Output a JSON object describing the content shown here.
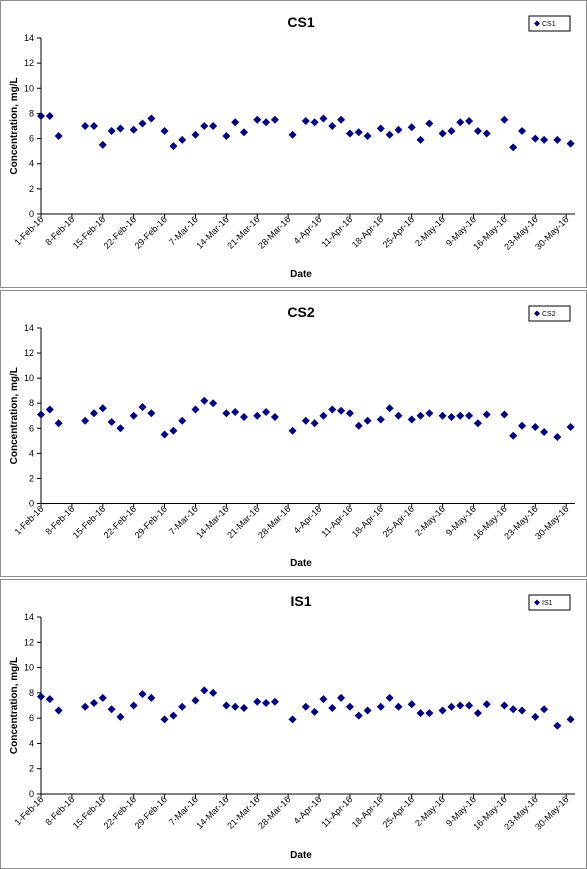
{
  "chart_data": [
    {
      "type": "scatter",
      "title": "CS1",
      "xlabel": "Date",
      "ylabel": "Concentration, mg/L",
      "ylim": [
        0,
        14
      ],
      "yticks": [
        0,
        2,
        4,
        6,
        8,
        10,
        12,
        14
      ],
      "xlim": [
        "2016-02-01",
        "2016-06-01"
      ],
      "xtick_labels": [
        "1-Feb-16",
        "8-Feb-16",
        "15-Feb-16",
        "22-Feb-16",
        "29-Feb-16",
        "7-Mar-16",
        "14-Mar-16",
        "21-Mar-16",
        "28-Mar-16",
        "4-Apr-16",
        "11-Apr-16",
        "18-Apr-16",
        "25-Apr-16",
        "2-May-16",
        "9-May-16",
        "16-May-16",
        "23-May-16",
        "30-May-16"
      ],
      "grid": false,
      "legend": "top-right",
      "marker_color": "#000080",
      "series": [
        {
          "name": "CS1",
          "x": [
            "2016-02-01",
            "2016-02-03",
            "2016-02-05",
            "2016-02-11",
            "2016-02-13",
            "2016-02-15",
            "2016-02-17",
            "2016-02-19",
            "2016-02-22",
            "2016-02-24",
            "2016-02-26",
            "2016-02-29",
            "2016-03-02",
            "2016-03-04",
            "2016-03-07",
            "2016-03-09",
            "2016-03-11",
            "2016-03-14",
            "2016-03-16",
            "2016-03-18",
            "2016-03-21",
            "2016-03-23",
            "2016-03-25",
            "2016-03-29",
            "2016-04-01",
            "2016-04-03",
            "2016-04-05",
            "2016-04-07",
            "2016-04-09",
            "2016-04-11",
            "2016-04-13",
            "2016-04-15",
            "2016-04-18",
            "2016-04-20",
            "2016-04-22",
            "2016-04-25",
            "2016-04-27",
            "2016-04-29",
            "2016-05-02",
            "2016-05-04",
            "2016-05-06",
            "2016-05-08",
            "2016-05-10",
            "2016-05-12",
            "2016-05-16",
            "2016-05-18",
            "2016-05-20",
            "2016-05-23",
            "2016-05-25",
            "2016-05-28",
            "2016-05-31"
          ],
          "y": [
            7.8,
            7.8,
            6.2,
            7.0,
            7.0,
            5.5,
            6.6,
            6.8,
            6.7,
            7.2,
            7.6,
            6.6,
            5.4,
            5.9,
            6.3,
            7.0,
            7.0,
            6.2,
            7.3,
            6.5,
            7.5,
            7.3,
            7.5,
            6.3,
            7.4,
            7.3,
            7.6,
            7.0,
            7.5,
            6.4,
            6.5,
            6.2,
            6.8,
            6.3,
            6.7,
            6.9,
            5.9,
            7.2,
            6.4,
            6.6,
            7.3,
            7.4,
            6.6,
            6.4,
            7.5,
            5.3,
            6.6,
            6.0,
            5.9,
            5.9,
            5.6
          ]
        }
      ]
    },
    {
      "type": "scatter",
      "title": "CS2",
      "xlabel": "Date",
      "ylabel": "Concentration, mg/L",
      "ylim": [
        0,
        14
      ],
      "yticks": [
        0,
        2,
        4,
        6,
        8,
        10,
        12,
        14
      ],
      "xlim": [
        "2016-02-01",
        "2016-06-01"
      ],
      "xtick_labels": [
        "1-Feb-16",
        "8-Feb-16",
        "15-Feb-16",
        "22-Feb-16",
        "29-Feb-16",
        "7-Mar-16",
        "14-Mar-16",
        "21-Mar-16",
        "28-Mar-16",
        "4-Apr-16",
        "11-Apr-16",
        "18-Apr-16",
        "25-Apr-16",
        "2-May-16",
        "9-May-16",
        "16-May-16",
        "23-May-16",
        "30-May-16"
      ],
      "grid": false,
      "legend": "top-right",
      "marker_color": "#000080",
      "series": [
        {
          "name": "CS2",
          "x": [
            "2016-02-01",
            "2016-02-03",
            "2016-02-05",
            "2016-02-11",
            "2016-02-13",
            "2016-02-15",
            "2016-02-17",
            "2016-02-19",
            "2016-02-22",
            "2016-02-24",
            "2016-02-26",
            "2016-02-29",
            "2016-03-02",
            "2016-03-04",
            "2016-03-07",
            "2016-03-09",
            "2016-03-11",
            "2016-03-14",
            "2016-03-16",
            "2016-03-18",
            "2016-03-21",
            "2016-03-23",
            "2016-03-25",
            "2016-03-29",
            "2016-04-01",
            "2016-04-03",
            "2016-04-05",
            "2016-04-07",
            "2016-04-09",
            "2016-04-11",
            "2016-04-13",
            "2016-04-15",
            "2016-04-18",
            "2016-04-20",
            "2016-04-22",
            "2016-04-25",
            "2016-04-27",
            "2016-04-29",
            "2016-05-02",
            "2016-05-04",
            "2016-05-06",
            "2016-05-08",
            "2016-05-10",
            "2016-05-12",
            "2016-05-16",
            "2016-05-18",
            "2016-05-20",
            "2016-05-23",
            "2016-05-25",
            "2016-05-28",
            "2016-05-31"
          ],
          "y": [
            7.1,
            7.5,
            6.4,
            6.6,
            7.2,
            7.6,
            6.5,
            6.0,
            7.0,
            7.7,
            7.2,
            5.5,
            5.8,
            6.6,
            7.5,
            8.2,
            8.0,
            7.2,
            7.3,
            6.9,
            7.0,
            7.3,
            6.9,
            5.8,
            6.6,
            6.4,
            7.0,
            7.5,
            7.4,
            7.2,
            6.2,
            6.6,
            6.7,
            7.6,
            7.0,
            6.7,
            7.0,
            7.2,
            7.0,
            6.9,
            7.0,
            7.0,
            6.4,
            7.1,
            7.1,
            5.4,
            6.2,
            6.1,
            5.7,
            5.3,
            6.1
          ]
        }
      ]
    },
    {
      "type": "scatter",
      "title": "IS1",
      "xlabel": "Date",
      "ylabel": "Concentration, mg/L",
      "ylim": [
        0,
        14
      ],
      "yticks": [
        0,
        2,
        4,
        6,
        8,
        10,
        12,
        14
      ],
      "xlim": [
        "2016-02-01",
        "2016-06-01"
      ],
      "xtick_labels": [
        "1-Feb-16",
        "8-Feb-16",
        "15-Feb-16",
        "22-Feb-16",
        "29-Feb-16",
        "7-Mar-16",
        "14-Mar-16",
        "21-Mar-16",
        "28-Mar-16",
        "4-Apr-16",
        "11-Apr-16",
        "18-Apr-16",
        "25-Apr-16",
        "2-May-16",
        "9-May-16",
        "16-May-16",
        "23-May-16",
        "30-May-16"
      ],
      "grid": false,
      "legend": "top-right",
      "marker_color": "#000080",
      "series": [
        {
          "name": "IS1",
          "x": [
            "2016-02-01",
            "2016-02-03",
            "2016-02-05",
            "2016-02-11",
            "2016-02-13",
            "2016-02-15",
            "2016-02-17",
            "2016-02-19",
            "2016-02-22",
            "2016-02-24",
            "2016-02-26",
            "2016-02-29",
            "2016-03-02",
            "2016-03-04",
            "2016-03-07",
            "2016-03-09",
            "2016-03-11",
            "2016-03-14",
            "2016-03-16",
            "2016-03-18",
            "2016-03-21",
            "2016-03-23",
            "2016-03-25",
            "2016-03-29",
            "2016-04-01",
            "2016-04-03",
            "2016-04-05",
            "2016-04-07",
            "2016-04-09",
            "2016-04-11",
            "2016-04-13",
            "2016-04-15",
            "2016-04-18",
            "2016-04-20",
            "2016-04-22",
            "2016-04-25",
            "2016-04-27",
            "2016-04-29",
            "2016-05-02",
            "2016-05-04",
            "2016-05-06",
            "2016-05-08",
            "2016-05-10",
            "2016-05-12",
            "2016-05-16",
            "2016-05-18",
            "2016-05-20",
            "2016-05-23",
            "2016-05-25",
            "2016-05-28",
            "2016-05-31"
          ],
          "y": [
            7.7,
            7.5,
            6.6,
            6.9,
            7.2,
            7.6,
            6.7,
            6.1,
            7.0,
            7.9,
            7.6,
            5.9,
            6.2,
            6.9,
            7.4,
            8.2,
            8.0,
            7.0,
            6.9,
            6.8,
            7.3,
            7.2,
            7.3,
            5.9,
            6.9,
            6.5,
            7.5,
            6.8,
            7.6,
            6.9,
            6.2,
            6.6,
            6.9,
            7.6,
            6.9,
            7.1,
            6.4,
            6.4,
            6.6,
            6.9,
            7.0,
            7.0,
            6.4,
            7.1,
            7.0,
            6.7,
            6.6,
            6.1,
            6.7,
            5.4,
            5.9
          ]
        }
      ]
    }
  ]
}
